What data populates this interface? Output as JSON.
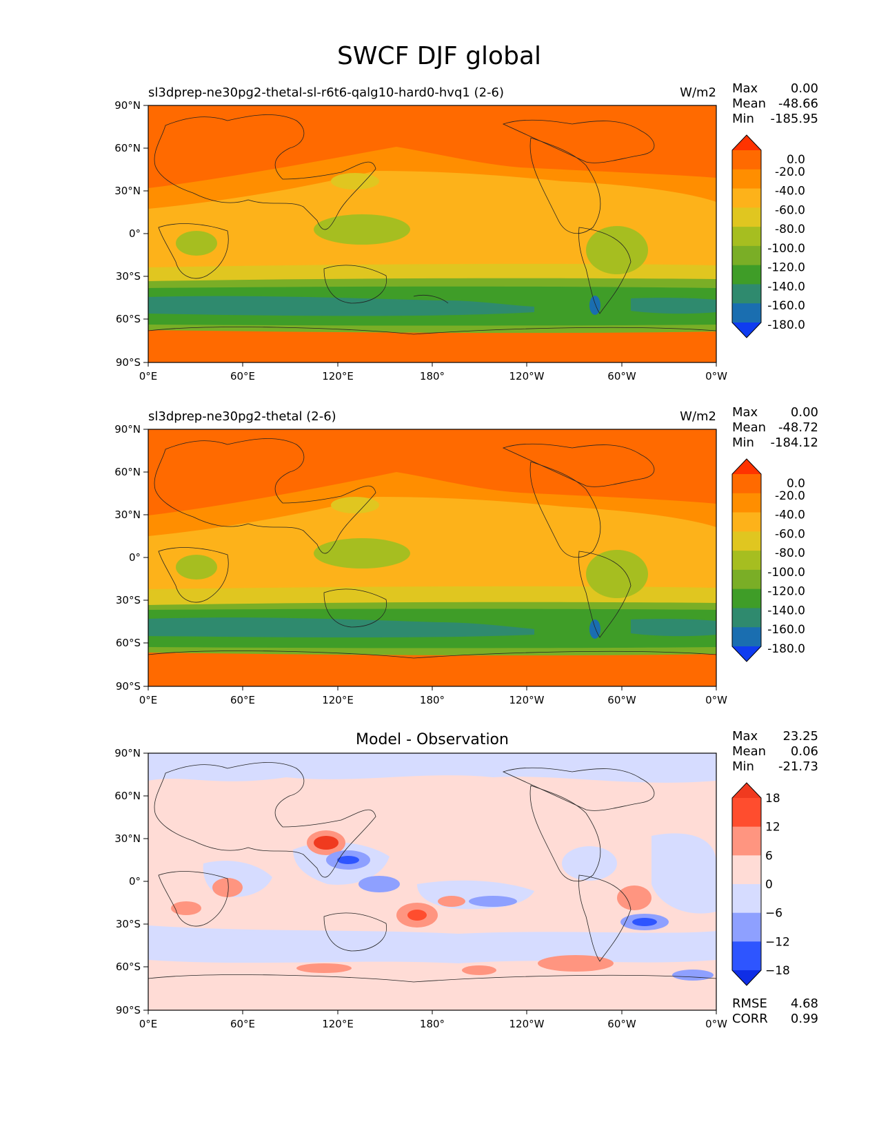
{
  "figure": {
    "title": "SWCF DJF global"
  },
  "axes": {
    "lat_ticks": [
      "90°N",
      "60°N",
      "30°N",
      "0°",
      "30°S",
      "60°S",
      "90°S"
    ],
    "lon_ticks": [
      "0°E",
      "60°E",
      "120°E",
      "180°",
      "120°W",
      "60°W",
      "0°W"
    ]
  },
  "panels": [
    {
      "title_left": "sl3dprep-ne30pg2-thetal-sl-r6t6-qalg10-hard0-hvq1 (2-6)",
      "title_center": "",
      "units": "W/m2",
      "stats": {
        "max_label": "Max",
        "max": "0.00",
        "mean_label": "Mean",
        "mean": "-48.66",
        "min_label": "Min",
        "min": "-185.95"
      },
      "colorbar": {
        "labels": [
          "0.0",
          "-20.0",
          "-40.0",
          "-60.0",
          "-80.0",
          "-100.0",
          "-120.0",
          "-140.0",
          "-160.0",
          "-180.0"
        ],
        "colors": [
          "#ff3300",
          "#ff6a00",
          "#ff8e00",
          "#fdb21a",
          "#e0c620",
          "#a6be20",
          "#7aae26",
          "#3f9d28",
          "#2f8a6e",
          "#1a6eb0",
          "#0f3cf0"
        ]
      },
      "footer": null
    },
    {
      "title_left": "sl3dprep-ne30pg2-thetal (2-6)",
      "title_center": "",
      "units": "W/m2",
      "stats": {
        "max_label": "Max",
        "max": "0.00",
        "mean_label": "Mean",
        "mean": "-48.72",
        "min_label": "Min",
        "min": "-184.12"
      },
      "colorbar": {
        "labels": [
          "0.0",
          "-20.0",
          "-40.0",
          "-60.0",
          "-80.0",
          "-100.0",
          "-120.0",
          "-140.0",
          "-160.0",
          "-180.0"
        ],
        "colors": [
          "#ff3300",
          "#ff6a00",
          "#ff8e00",
          "#fdb21a",
          "#e0c620",
          "#a6be20",
          "#7aae26",
          "#3f9d28",
          "#2f8a6e",
          "#1a6eb0",
          "#0f3cf0"
        ]
      },
      "footer": null
    },
    {
      "title_left": "",
      "title_center": "Model - Observation",
      "units": "",
      "stats": {
        "max_label": "Max",
        "max": "23.25",
        "mean_label": "Mean",
        "mean": "0.06",
        "min_label": "Min",
        "min": "-21.73"
      },
      "colorbar": {
        "labels": [
          "18",
          "12",
          "6",
          "0",
          "−6",
          "−12",
          "−18"
        ],
        "colors": [
          "#f03a1f",
          "#ff4d2e",
          "#ff9580",
          "#ffdcd6",
          "#d6dcff",
          "#8ea0ff",
          "#2e55ff",
          "#0f2ee6"
        ]
      },
      "footer": {
        "rmse_label": "RMSE",
        "rmse": "4.68",
        "corr_label": "CORR",
        "corr": "0.99"
      }
    }
  ]
}
